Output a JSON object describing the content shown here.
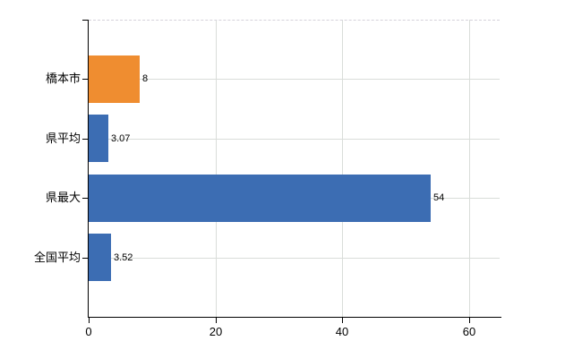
{
  "chart_data": {
    "type": "bar",
    "orientation": "horizontal",
    "title": "",
    "categories": [
      "橋本市",
      "県平均",
      "県最大",
      "全国平均"
    ],
    "values": [
      8,
      3.07,
      54,
      3.52
    ],
    "value_labels": [
      "8",
      "3.07",
      "54",
      "3.52"
    ],
    "bar_colors": [
      "#ef8d30",
      "#3c6db3",
      "#3c6db3",
      "#3c6db3"
    ],
    "x_ticks": [
      0,
      20,
      40,
      60
    ],
    "x_tick_labels": [
      "0",
      "20",
      "40",
      "60"
    ],
    "xlim": [
      0,
      64.8
    ],
    "ylabel": "",
    "xlabel": "",
    "grid": true,
    "legend_position": "none",
    "colors": {
      "background": "#ffffff",
      "axis": "#000000",
      "gridline": "#d9ddd9",
      "top_border_dashed": "#d5d2da",
      "text": "#000000",
      "highlight_bar": "#ef8d30",
      "default_bar": "#3c6db3"
    }
  }
}
